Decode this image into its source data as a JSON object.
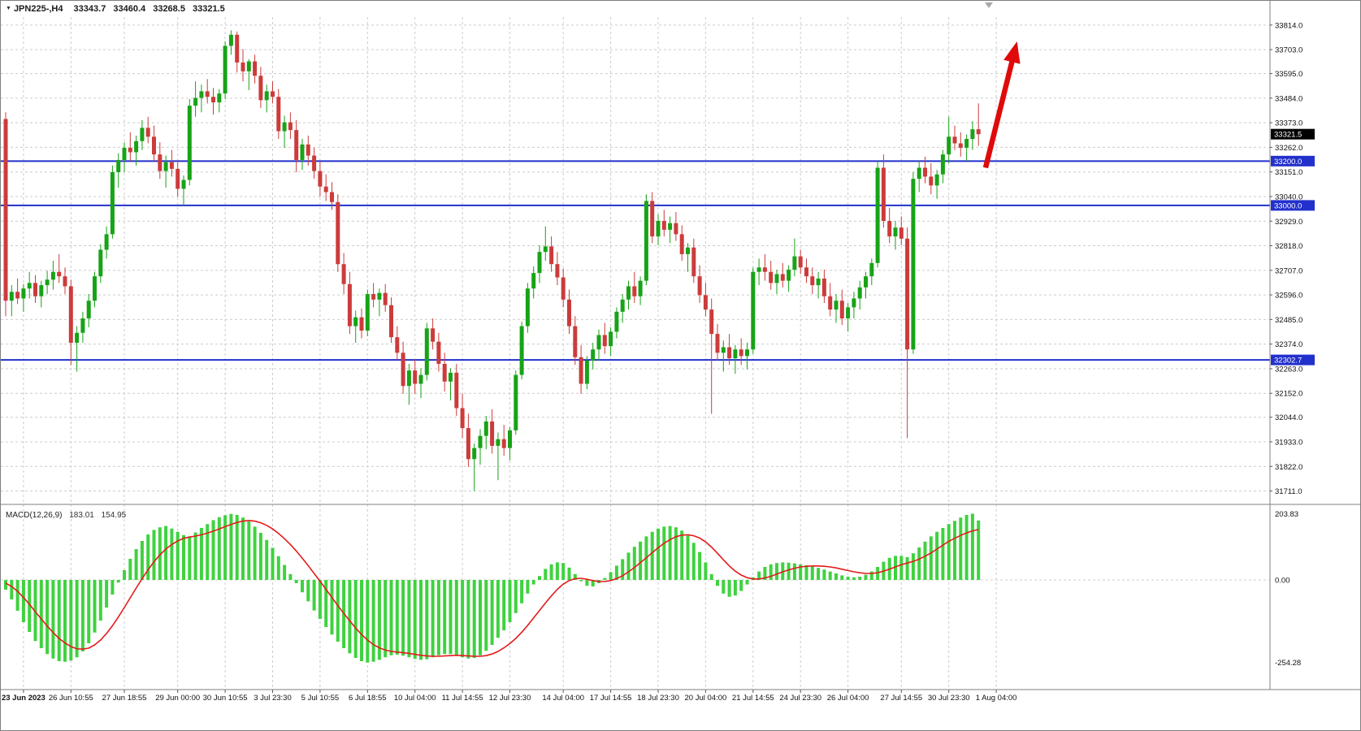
{
  "window": {
    "title_symbol": "JPN225-,H4",
    "ohlc": {
      "open": "33343.7",
      "high": "33460.4",
      "low": "33268.5",
      "close": "33321.5"
    }
  },
  "chart_data": {
    "type": "candlestick",
    "symbol": "JPN225-",
    "timeframe": "H4",
    "ylim": [
      31680,
      33850
    ],
    "price_ticks": [
      33814,
      33703,
      33595,
      33484,
      33373,
      33262,
      33151,
      33040,
      32929,
      32818,
      32707,
      32596,
      32485,
      32374,
      32263,
      32152,
      32044,
      31933,
      31822,
      31711
    ],
    "time_ticks": [
      {
        "label": "23 Jun 2023",
        "i": 3
      },
      {
        "label": "26 Jun 10:55",
        "i": 11
      },
      {
        "label": "27 Jun 18:55",
        "i": 20
      },
      {
        "label": "29 Jun 00:00",
        "i": 29
      },
      {
        "label": "30 Jun 10:55",
        "i": 37
      },
      {
        "label": "3 Jul 23:30",
        "i": 45
      },
      {
        "label": "5 Jul 10:55",
        "i": 53
      },
      {
        "label": "6 Jul 18:55",
        "i": 61
      },
      {
        "label": "10 Jul 04:00",
        "i": 69
      },
      {
        "label": "11 Jul 14:55",
        "i": 77
      },
      {
        "label": "12 Jul 23:30",
        "i": 85
      },
      {
        "label": "14 Jul 04:00",
        "i": 94
      },
      {
        "label": "17 Jul 14:55",
        "i": 102
      },
      {
        "label": "18 Jul 23:30",
        "i": 110
      },
      {
        "label": "20 Jul 04:00",
        "i": 118
      },
      {
        "label": "21 Jul 14:55",
        "i": 126
      },
      {
        "label": "24 Jul 23:30",
        "i": 134
      },
      {
        "label": "26 Jul 04:00",
        "i": 142
      },
      {
        "label": "27 Jul 14:55",
        "i": 151
      },
      {
        "label": "30 Jul 23:30",
        "i": 159
      },
      {
        "label": "1 Aug 04:00",
        "i": 167
      }
    ],
    "hlines": [
      {
        "price": 33200.0,
        "label": "33200.0"
      },
      {
        "price": 33000.0,
        "label": "33000.0"
      },
      {
        "price": 32302.7,
        "label": "32302.7"
      }
    ],
    "current_price": {
      "value": 33321.5,
      "label": "33321.5"
    },
    "arrow": {
      "from_i": 165.2,
      "from_price": 33170,
      "to_i": 170.5,
      "to_price": 33740,
      "color": "#e00a0a"
    },
    "candles": [
      [
        33390,
        33420,
        32500,
        32570
      ],
      [
        32570,
        32640,
        32500,
        32610
      ],
      [
        32610,
        32670,
        32555,
        32580
      ],
      [
        32580,
        32645,
        32520,
        32625
      ],
      [
        32625,
        32700,
        32580,
        32650
      ],
      [
        32650,
        32685,
        32560,
        32590
      ],
      [
        32590,
        32660,
        32540,
        32640
      ],
      [
        32640,
        32705,
        32600,
        32665
      ],
      [
        32665,
        32750,
        32620,
        32700
      ],
      [
        32700,
        32780,
        32650,
        32680
      ],
      [
        32680,
        32720,
        32600,
        32635
      ],
      [
        32635,
        32665,
        32280,
        32380
      ],
      [
        32380,
        32455,
        32250,
        32425
      ],
      [
        32425,
        32520,
        32380,
        32490
      ],
      [
        32490,
        32600,
        32450,
        32570
      ],
      [
        32570,
        32700,
        32540,
        32680
      ],
      [
        32680,
        32825,
        32650,
        32800
      ],
      [
        32800,
        32905,
        32760,
        32870
      ],
      [
        32870,
        33180,
        32850,
        33150
      ],
      [
        33150,
        33235,
        33080,
        33205
      ],
      [
        33205,
        33285,
        33150,
        33260
      ],
      [
        33260,
        33330,
        33200,
        33240
      ],
      [
        33240,
        33315,
        33180,
        33290
      ],
      [
        33290,
        33385,
        33250,
        33350
      ],
      [
        33350,
        33400,
        33280,
        33310
      ],
      [
        33310,
        33360,
        33200,
        33230
      ],
      [
        33230,
        33285,
        33120,
        33155
      ],
      [
        33155,
        33225,
        33080,
        33195
      ],
      [
        33195,
        33250,
        33130,
        33165
      ],
      [
        33165,
        33205,
        33040,
        33075
      ],
      [
        33075,
        33135,
        33000,
        33115
      ],
      [
        33115,
        33480,
        33090,
        33450
      ],
      [
        33450,
        33560,
        33400,
        33485
      ],
      [
        33485,
        33545,
        33420,
        33515
      ],
      [
        33515,
        33570,
        33460,
        33490
      ],
      [
        33490,
        33530,
        33410,
        33465
      ],
      [
        33465,
        33525,
        33420,
        33505
      ],
      [
        33505,
        33740,
        33480,
        33720
      ],
      [
        33720,
        33790,
        33680,
        33770
      ],
      [
        33770,
        33785,
        33600,
        33645
      ],
      [
        33645,
        33705,
        33560,
        33605
      ],
      [
        33605,
        33660,
        33520,
        33650
      ],
      [
        33650,
        33680,
        33550,
        33585
      ],
      [
        33585,
        33625,
        33440,
        33475
      ],
      [
        33475,
        33545,
        33420,
        33515
      ],
      [
        33515,
        33560,
        33460,
        33490
      ],
      [
        33490,
        33525,
        33300,
        33335
      ],
      [
        33335,
        33405,
        33260,
        33375
      ],
      [
        33375,
        33420,
        33300,
        33340
      ],
      [
        33340,
        33385,
        33150,
        33205
      ],
      [
        33205,
        33300,
        33160,
        33275
      ],
      [
        33275,
        33315,
        33180,
        33225
      ],
      [
        33225,
        33260,
        33120,
        33155
      ],
      [
        33155,
        33200,
        33040,
        33085
      ],
      [
        33085,
        33140,
        33020,
        33060
      ],
      [
        33060,
        33105,
        32980,
        33015
      ],
      [
        33015,
        33050,
        32700,
        32735
      ],
      [
        32735,
        32785,
        32600,
        32645
      ],
      [
        32645,
        32700,
        32420,
        32455
      ],
      [
        32455,
        32525,
        32380,
        32495
      ],
      [
        32495,
        32535,
        32400,
        32435
      ],
      [
        32435,
        32620,
        32410,
        32600
      ],
      [
        32600,
        32650,
        32540,
        32575
      ],
      [
        32575,
        32625,
        32500,
        32605
      ],
      [
        32605,
        32645,
        32520,
        32550
      ],
      [
        32550,
        32585,
        32380,
        32405
      ],
      [
        32405,
        32455,
        32300,
        32335
      ],
      [
        32335,
        32385,
        32150,
        32185
      ],
      [
        32185,
        32285,
        32100,
        32255
      ],
      [
        32255,
        32305,
        32150,
        32195
      ],
      [
        32195,
        32265,
        32130,
        32235
      ],
      [
        32235,
        32470,
        32210,
        32445
      ],
      [
        32445,
        32490,
        32350,
        32385
      ],
      [
        32385,
        32425,
        32250,
        32285
      ],
      [
        32285,
        32335,
        32160,
        32205
      ],
      [
        32205,
        32265,
        32120,
        32245
      ],
      [
        32245,
        32285,
        32050,
        32085
      ],
      [
        32085,
        32150,
        31950,
        31995
      ],
      [
        31995,
        32060,
        31820,
        31855
      ],
      [
        31855,
        31925,
        31711,
        31905
      ],
      [
        31905,
        31990,
        31830,
        31960
      ],
      [
        31960,
        32050,
        31900,
        32025
      ],
      [
        32025,
        32080,
        31880,
        31915
      ],
      [
        31915,
        31975,
        31760,
        31945
      ],
      [
        31945,
        32010,
        31870,
        31905
      ],
      [
        31905,
        32000,
        31850,
        31985
      ],
      [
        31985,
        32255,
        31965,
        32235
      ],
      [
        32235,
        32475,
        32215,
        32455
      ],
      [
        32455,
        32650,
        32425,
        32625
      ],
      [
        32625,
        32725,
        32580,
        32695
      ],
      [
        32695,
        32820,
        32650,
        32790
      ],
      [
        32790,
        32905,
        32750,
        32815
      ],
      [
        32815,
        32860,
        32700,
        32735
      ],
      [
        32735,
        32790,
        32640,
        32675
      ],
      [
        32675,
        32715,
        32540,
        32575
      ],
      [
        32575,
        32620,
        32420,
        32455
      ],
      [
        32455,
        32500,
        32280,
        32315
      ],
      [
        32315,
        32370,
        32150,
        32195
      ],
      [
        32195,
        32320,
        32170,
        32300
      ],
      [
        32300,
        32380,
        32260,
        32350
      ],
      [
        32350,
        32440,
        32300,
        32415
      ],
      [
        32415,
        32470,
        32330,
        32365
      ],
      [
        32365,
        32450,
        32320,
        32430
      ],
      [
        32430,
        32540,
        32400,
        32520
      ],
      [
        32520,
        32600,
        32470,
        32575
      ],
      [
        32575,
        32660,
        32530,
        32635
      ],
      [
        32635,
        32700,
        32560,
        32590
      ],
      [
        32590,
        32680,
        32550,
        32660
      ],
      [
        32660,
        33050,
        32640,
        33020
      ],
      [
        33020,
        33060,
        32830,
        32860
      ],
      [
        32860,
        32960,
        32820,
        32930
      ],
      [
        32930,
        32980,
        32860,
        32890
      ],
      [
        32890,
        32950,
        32830,
        32920
      ],
      [
        32920,
        32970,
        32840,
        32870
      ],
      [
        32870,
        32910,
        32750,
        32780
      ],
      [
        32780,
        32830,
        32700,
        32810
      ],
      [
        32810,
        32850,
        32650,
        32680
      ],
      [
        32680,
        32730,
        32560,
        32595
      ],
      [
        32595,
        32650,
        32500,
        32530
      ],
      [
        32530,
        32580,
        32060,
        32420
      ],
      [
        32420,
        32465,
        32300,
        32335
      ],
      [
        32335,
        32390,
        32250,
        32360
      ],
      [
        32360,
        32420,
        32280,
        32310
      ],
      [
        32310,
        32370,
        32240,
        32350
      ],
      [
        32350,
        32400,
        32280,
        32320
      ],
      [
        32320,
        32380,
        32260,
        32350
      ],
      [
        32350,
        32720,
        32330,
        32700
      ],
      [
        32700,
        32760,
        32640,
        32720
      ],
      [
        32720,
        32780,
        32660,
        32700
      ],
      [
        32700,
        32750,
        32620,
        32650
      ],
      [
        32650,
        32710,
        32600,
        32690
      ],
      [
        32690,
        32740,
        32630,
        32660
      ],
      [
        32660,
        32730,
        32610,
        32710
      ],
      [
        32710,
        32850,
        32680,
        32770
      ],
      [
        32770,
        32800,
        32690,
        32720
      ],
      [
        32720,
        32760,
        32650,
        32680
      ],
      [
        32680,
        32720,
        32600,
        32640
      ],
      [
        32640,
        32700,
        32580,
        32670
      ],
      [
        32670,
        32710,
        32560,
        32590
      ],
      [
        32590,
        32650,
        32500,
        32530
      ],
      [
        32530,
        32600,
        32470,
        32570
      ],
      [
        32570,
        32620,
        32460,
        32490
      ],
      [
        32490,
        32560,
        32430,
        32540
      ],
      [
        32540,
        32610,
        32490,
        32580
      ],
      [
        32580,
        32660,
        32530,
        32630
      ],
      [
        32630,
        32700,
        32580,
        32680
      ],
      [
        32680,
        32760,
        32640,
        32740
      ],
      [
        32740,
        33200,
        32720,
        33170
      ],
      [
        33170,
        33230,
        32900,
        32930
      ],
      [
        32930,
        32990,
        32830,
        32860
      ],
      [
        32860,
        32930,
        32800,
        32900
      ],
      [
        32900,
        32950,
        32820,
        32850
      ],
      [
        32850,
        32900,
        31950,
        32350
      ],
      [
        32350,
        33150,
        32330,
        33120
      ],
      [
        33120,
        33200,
        33060,
        33170
      ],
      [
        33170,
        33220,
        33100,
        33130
      ],
      [
        33130,
        33190,
        33050,
        33090
      ],
      [
        33090,
        33160,
        33030,
        33140
      ],
      [
        33140,
        33250,
        33100,
        33230
      ],
      [
        33230,
        33400,
        33190,
        33310
      ],
      [
        33310,
        33360,
        33250,
        33280
      ],
      [
        33280,
        33330,
        33220,
        33260
      ],
      [
        33260,
        33320,
        33200,
        33300
      ],
      [
        33300,
        33380,
        33250,
        33343.7
      ],
      [
        33343.7,
        33460.4,
        33268.5,
        33321.5
      ]
    ],
    "macd": {
      "label": "MACD(12,26,9)",
      "value_main": "183.01",
      "value_signal": "154.95",
      "axis_labels": [
        "203.83",
        "0.00",
        "-254.28"
      ],
      "axis_values": [
        203.83,
        0,
        -254.28
      ],
      "histogram": [
        -30,
        -60,
        -95,
        -130,
        -160,
        -188,
        -210,
        -228,
        -242,
        -250,
        -252,
        -248,
        -238,
        -220,
        -195,
        -162,
        -125,
        -85,
        -45,
        -8,
        30,
        65,
        95,
        120,
        140,
        154,
        162,
        166,
        158,
        148,
        138,
        134,
        146,
        160,
        172,
        184,
        193,
        199,
        203,
        200,
        192,
        180,
        164,
        145,
        123,
        99,
        73,
        46,
        18,
        -10,
        -38,
        -66,
        -94,
        -120,
        -145,
        -168,
        -190,
        -210,
        -226,
        -240,
        -250,
        -254.28,
        -252,
        -246,
        -238,
        -232,
        -230,
        -233,
        -238,
        -243,
        -246,
        -244,
        -238,
        -232,
        -228,
        -228,
        -232,
        -238,
        -242,
        -240,
        -232,
        -218,
        -200,
        -178,
        -155,
        -130,
        -102,
        -72,
        -42,
        -14,
        12,
        34,
        48,
        54,
        52,
        38,
        18,
        -4,
        -18,
        -20,
        -10,
        6,
        24,
        44,
        64,
        84,
        102,
        118,
        134,
        148,
        158,
        164,
        166,
        162,
        152,
        136,
        114,
        86,
        54,
        18,
        -18,
        -42,
        -52,
        -48,
        -34,
        -14,
        8,
        26,
        40,
        48,
        52,
        54,
        53,
        51,
        48,
        45,
        41,
        37,
        32,
        26,
        20,
        14,
        10,
        8,
        10,
        16,
        26,
        40,
        56,
        68,
        74,
        74,
        70,
        82,
        100,
        118,
        134,
        148,
        160,
        172,
        182,
        192,
        200,
        203.83,
        183.01
      ],
      "signal": [
        -10,
        -20,
        -35,
        -54,
        -75,
        -98,
        -120,
        -142,
        -162,
        -180,
        -194,
        -205,
        -212,
        -213,
        -210,
        -200,
        -185,
        -165,
        -141,
        -114,
        -85,
        -55,
        -25,
        4,
        31,
        56,
        77,
        95,
        109,
        120,
        128,
        132,
        135,
        139,
        144,
        150,
        157,
        164,
        171,
        177,
        181,
        183,
        181,
        176,
        168,
        157,
        143,
        127,
        109,
        89,
        67,
        44,
        20,
        -4,
        -29,
        -54,
        -79,
        -103,
        -126,
        -148,
        -168,
        -185,
        -199,
        -209,
        -216,
        -220,
        -222,
        -224,
        -226,
        -229,
        -232,
        -234,
        -235,
        -235,
        -234,
        -233,
        -232,
        -233,
        -234,
        -235,
        -235,
        -233,
        -228,
        -220,
        -209,
        -196,
        -180,
        -161,
        -140,
        -117,
        -94,
        -71,
        -49,
        -29,
        -13,
        -2,
        4,
        5,
        2,
        -2,
        -5,
        -5,
        -2,
        4,
        13,
        25,
        38,
        53,
        68,
        84,
        99,
        113,
        124,
        133,
        138,
        139,
        136,
        129,
        117,
        101,
        82,
        62,
        43,
        27,
        15,
        7,
        3,
        3,
        6,
        11,
        18,
        25,
        31,
        36,
        40,
        42,
        43,
        43,
        42,
        40,
        37,
        33,
        29,
        25,
        22,
        20,
        20,
        22,
        27,
        33,
        40,
        47,
        52,
        57,
        64,
        73,
        83,
        95,
        107,
        119,
        128,
        137,
        145,
        151,
        154.95
      ]
    },
    "colors": {
      "bull": "#17a317",
      "bear": "#cc3b3b",
      "hist": "#3fd23f",
      "signal": "#e31b1b",
      "hline": "#2230cc",
      "grid": "#cccccc",
      "badge_current_bg": "#000000",
      "badge_line_bg": "#2230cc",
      "axis_text": "#111111"
    }
  }
}
